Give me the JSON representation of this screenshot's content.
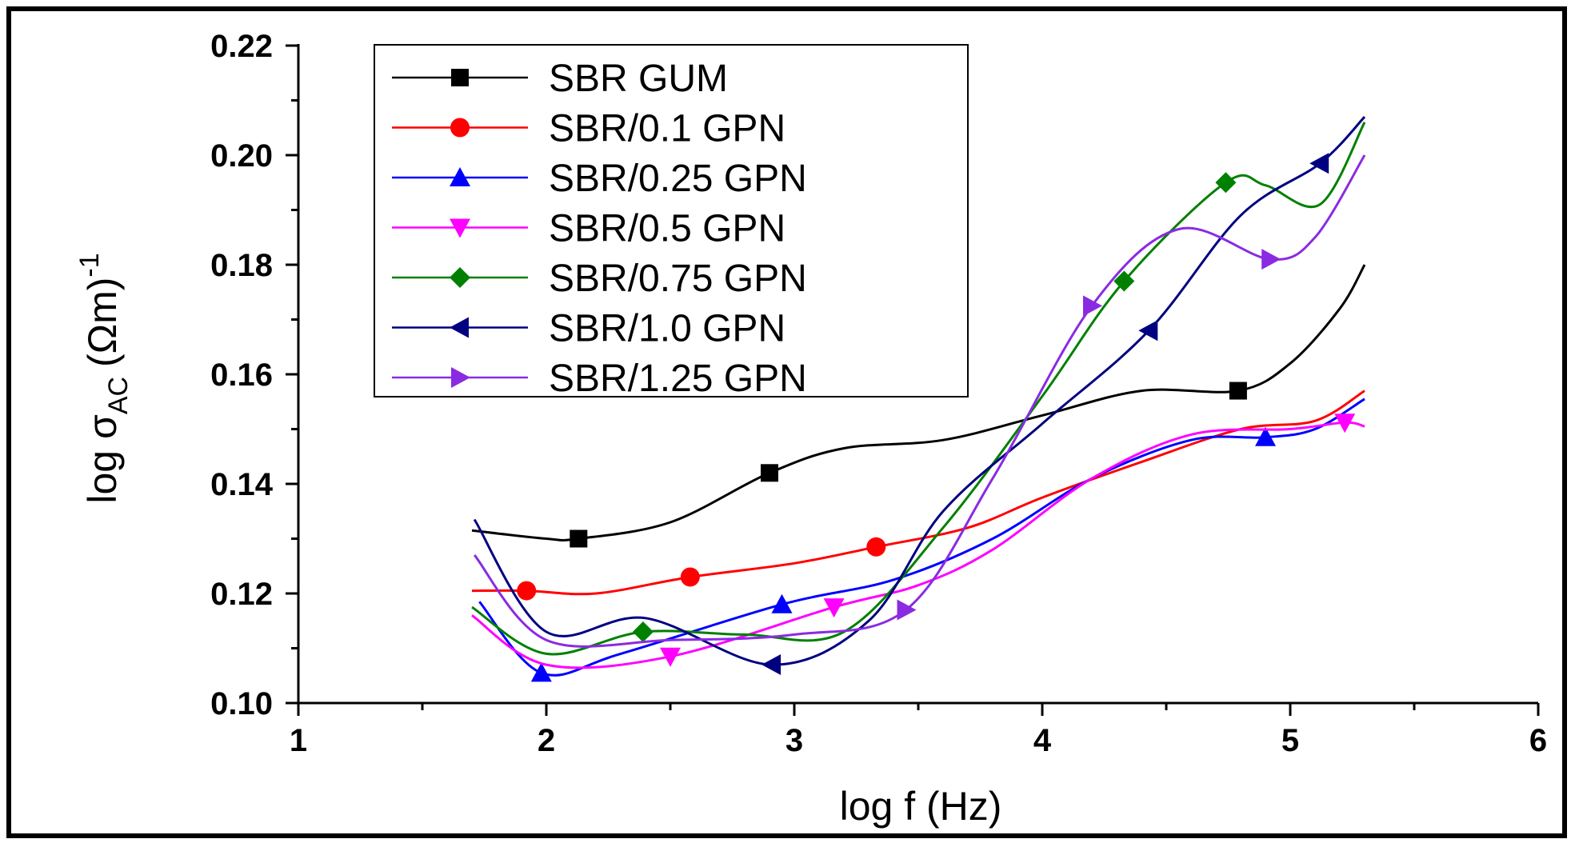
{
  "chart_data": {
    "type": "line",
    "xlabel": "log f (Hz)",
    "ylabel": {
      "prefix": "log σ",
      "subscript": "AC",
      "unit": "(Ωm)",
      "superscript": "-1"
    },
    "xlim": [
      1,
      6
    ],
    "ylim": [
      0.1,
      0.22
    ],
    "xticks": [
      "1",
      "2",
      "3",
      "4",
      "5",
      "6"
    ],
    "yticks": [
      "0.10",
      "0.12",
      "0.14",
      "0.16",
      "0.18",
      "0.20",
      "0.22"
    ],
    "legend_position": "top-left",
    "series": [
      {
        "name": "SBR GUM",
        "color": "#000000",
        "marker": "square",
        "x": [
          1.7,
          2.0,
          2.13,
          2.5,
          2.9,
          3.2,
          3.6,
          4.0,
          4.4,
          4.79,
          5.0,
          5.2,
          5.3
        ],
        "y": [
          0.1315,
          0.13,
          0.13,
          0.133,
          0.142,
          0.1465,
          0.148,
          0.1525,
          0.157,
          0.157,
          0.162,
          0.172,
          0.18
        ],
        "markers_x": [
          2.13,
          2.9,
          4.79
        ],
        "markers_y": [
          0.13,
          0.142,
          0.157
        ]
      },
      {
        "name": "SBR/0.1 GPN",
        "color": "#ff0000",
        "marker": "circle",
        "x": [
          1.7,
          1.92,
          2.2,
          2.58,
          3.0,
          3.33,
          3.7,
          4.0,
          4.4,
          4.8,
          5.1,
          5.3
        ],
        "y": [
          0.1205,
          0.1205,
          0.12,
          0.123,
          0.1255,
          0.1285,
          0.132,
          0.1375,
          0.144,
          0.15,
          0.1515,
          0.157
        ],
        "markers_x": [
          1.92,
          2.58,
          3.33
        ],
        "markers_y": [
          0.1205,
          0.123,
          0.1285
        ]
      },
      {
        "name": "SBR/0.25 GPN",
        "color": "#0000ff",
        "marker": "triangle-up",
        "x": [
          1.73,
          1.98,
          2.3,
          2.95,
          3.4,
          3.8,
          4.2,
          4.6,
          4.9,
          5.1,
          5.3
        ],
        "y": [
          0.1185,
          0.1055,
          0.109,
          0.118,
          0.1225,
          0.13,
          0.141,
          0.148,
          0.1485,
          0.15,
          0.1555
        ],
        "markers_x": [
          1.98,
          2.95,
          4.9
        ],
        "markers_y": [
          0.1055,
          0.118,
          0.1485
        ]
      },
      {
        "name": "SBR/0.5 GPN",
        "color": "#ff00ff",
        "marker": "triangle-down",
        "x": [
          1.7,
          2.0,
          2.5,
          3.16,
          3.5,
          3.8,
          4.2,
          4.6,
          5.0,
          5.22,
          5.3
        ],
        "y": [
          0.116,
          0.107,
          0.1085,
          0.1175,
          0.1215,
          0.128,
          0.141,
          0.149,
          0.15,
          0.1512,
          0.1505
        ],
        "markers_x": [
          2.5,
          3.16,
          5.22
        ],
        "markers_y": [
          0.1085,
          0.1175,
          0.1512
        ]
      },
      {
        "name": "SBR/0.75 GPN",
        "color": "#008000",
        "marker": "diamond",
        "x": [
          1.7,
          2.0,
          2.39,
          2.8,
          3.2,
          3.6,
          4.0,
          4.33,
          4.74,
          4.9,
          5.12,
          5.3
        ],
        "y": [
          0.1175,
          0.109,
          0.113,
          0.1125,
          0.113,
          0.132,
          0.156,
          0.177,
          0.195,
          0.1945,
          0.191,
          0.206
        ],
        "markers_x": [
          2.39,
          4.33,
          4.74
        ],
        "markers_y": [
          0.113,
          0.177,
          0.195
        ]
      },
      {
        "name": "SBR/1.0 GPN",
        "color": "#000080",
        "marker": "triangle-left",
        "x": [
          1.71,
          2.0,
          2.4,
          2.91,
          3.3,
          3.6,
          4.0,
          4.43,
          4.8,
          5.12,
          5.3
        ],
        "y": [
          0.1335,
          0.113,
          0.1155,
          0.107,
          0.115,
          0.135,
          0.151,
          0.168,
          0.189,
          0.1985,
          0.207
        ],
        "markers_x": [
          2.91,
          4.43,
          5.12
        ],
        "markers_y": [
          0.107,
          0.168,
          0.1985
        ]
      },
      {
        "name": "SBR/1.25 GPN",
        "color": "#8a2be2",
        "marker": "triangle-right",
        "x": [
          1.71,
          2.0,
          2.5,
          3.0,
          3.45,
          3.8,
          4.2,
          4.55,
          4.92,
          5.1,
          5.3
        ],
        "y": [
          0.127,
          0.1115,
          0.1115,
          0.1125,
          0.117,
          0.141,
          0.1725,
          0.1865,
          0.181,
          0.185,
          0.2
        ],
        "markers_x": [
          3.45,
          4.2,
          4.92
        ],
        "markers_y": [
          0.117,
          0.1725,
          0.181
        ]
      }
    ]
  }
}
